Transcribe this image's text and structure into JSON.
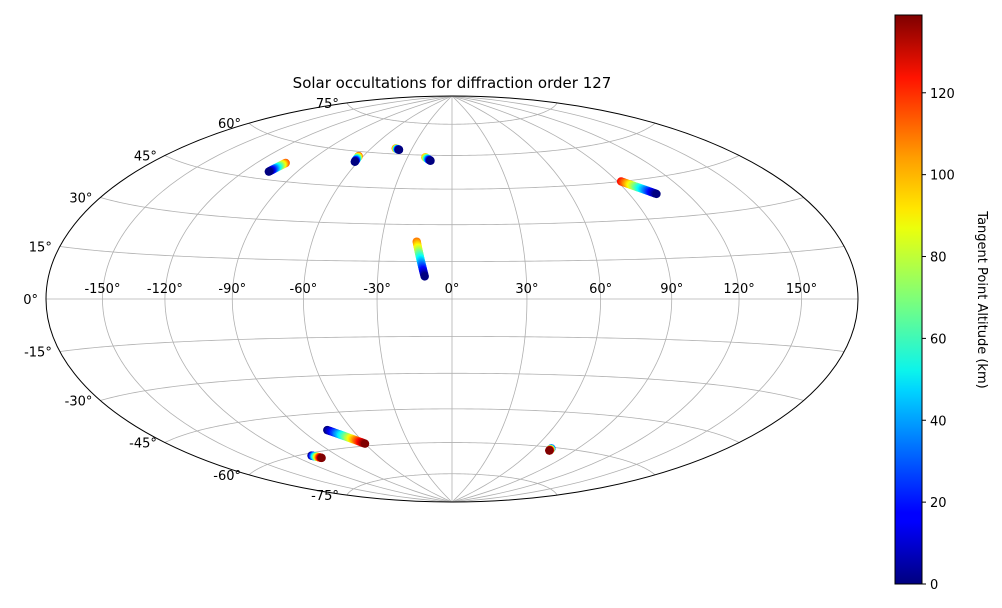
{
  "chart_data": {
    "type": "scatter",
    "projection": "hammer",
    "title": "Solar occultations for diffraction order 127",
    "lon_ticks": [
      -150,
      -120,
      -90,
      -60,
      -30,
      0,
      30,
      60,
      90,
      120,
      150
    ],
    "lon_tick_labels": [
      "-150°",
      "-120°",
      "-90°",
      "-60°",
      "-30°",
      "0°",
      "30°",
      "60°",
      "90°",
      "120°",
      "150°"
    ],
    "lat_ticks": [
      75,
      60,
      45,
      30,
      15,
      0,
      -15,
      -30,
      -45,
      -60,
      -75
    ],
    "lat_tick_labels": [
      "75°",
      "60°",
      "45°",
      "30°",
      "15°",
      "0°",
      "-15°",
      "-30°",
      "-45°",
      "-60°",
      "-75°"
    ],
    "grid": true,
    "colorbar": {
      "label": "Tangent Point Altitude (km)",
      "colormap": "jet",
      "range": [
        0,
        139
      ],
      "ticks": [
        0,
        20,
        40,
        60,
        80,
        100,
        120
      ],
      "tick_labels": [
        "0",
        "20",
        "40",
        "60",
        "80",
        "100",
        "120"
      ]
    },
    "tracks": [
      {
        "start": [
          -103,
          52
        ],
        "end": [
          -106,
          48
        ],
        "alt_start": 110,
        "alt_end": 0
      },
      {
        "start": [
          -63,
          58
        ],
        "end": [
          -62,
          55.5
        ],
        "alt_start": 110,
        "alt_end": 0
      },
      {
        "start": [
          -42,
          62.5
        ],
        "end": [
          -39,
          62
        ],
        "alt_start": 110,
        "alt_end": 0
      },
      {
        "start": [
          -18,
          59
        ],
        "end": [
          -14,
          57.5
        ],
        "alt_start": 100,
        "alt_end": 0
      },
      {
        "start": [
          -15,
          23
        ],
        "end": [
          -11,
          9
        ],
        "alt_start": 105,
        "alt_end": 0
      },
      {
        "start": [
          92,
          45
        ],
        "end": [
          104,
          39
        ],
        "alt_start": 120,
        "alt_end": 0
      },
      {
        "start": [
          -75,
          -52
        ],
        "end": [
          -60,
          -59
        ],
        "alt_start": 0,
        "alt_end": 139
      },
      {
        "start": [
          -108,
          -61
        ],
        "end": [
          -104,
          -62.5
        ],
        "alt_start": 0,
        "alt_end": 139
      },
      {
        "start": [
          72,
          -60.5
        ],
        "end": [
          72.5,
          -61.5
        ],
        "alt_start": 20,
        "alt_end": 139
      }
    ]
  }
}
